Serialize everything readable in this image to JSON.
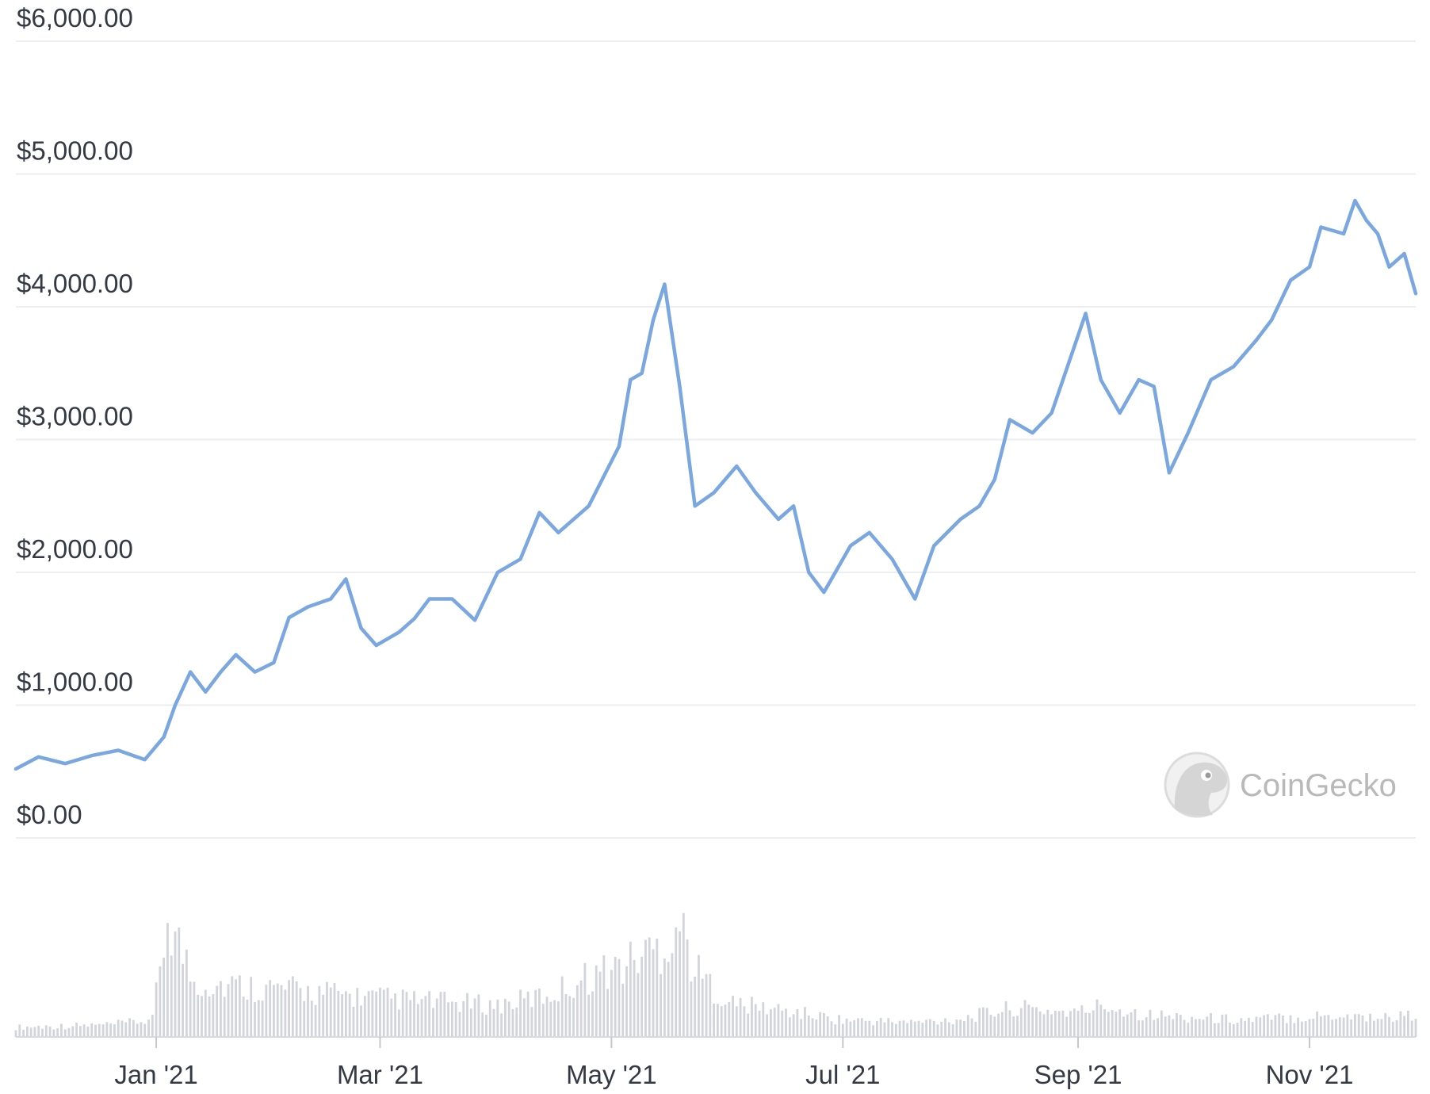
{
  "chart_data": {
    "type": "line",
    "y_ticks": [
      "$0.00",
      "$1,000.00",
      "$2,000.00",
      "$3,000.00",
      "$4,000.00",
      "$5,000.00",
      "$6,000.00"
    ],
    "ylim": [
      0,
      6000
    ],
    "x_ticks": [
      "Jan '21",
      "Mar '21",
      "May '21",
      "Jul '21",
      "Sep '21",
      "Nov '21"
    ],
    "x_tick_dates": [
      "2021-01-01",
      "2021-03-01",
      "2021-05-01",
      "2021-07-01",
      "2021-09-01",
      "2021-11-01"
    ],
    "x_range": [
      "2020-11-25",
      "2021-11-29"
    ],
    "grid": true,
    "line_color": "#7aa7e0",
    "price_series": {
      "x": [
        "2020-11-25",
        "2020-12-01",
        "2020-12-08",
        "2020-12-15",
        "2020-12-22",
        "2020-12-29",
        "2021-01-03",
        "2021-01-06",
        "2021-01-10",
        "2021-01-14",
        "2021-01-18",
        "2021-01-22",
        "2021-01-27",
        "2021-02-01",
        "2021-02-05",
        "2021-02-10",
        "2021-02-16",
        "2021-02-20",
        "2021-02-24",
        "2021-02-28",
        "2021-03-06",
        "2021-03-10",
        "2021-03-14",
        "2021-03-20",
        "2021-03-26",
        "2021-04-01",
        "2021-04-07",
        "2021-04-12",
        "2021-04-17",
        "2021-04-25",
        "2021-05-03",
        "2021-05-06",
        "2021-05-09",
        "2021-05-12",
        "2021-05-15",
        "2021-05-19",
        "2021-05-23",
        "2021-05-28",
        "2021-06-03",
        "2021-06-08",
        "2021-06-14",
        "2021-06-18",
        "2021-06-22",
        "2021-06-26",
        "2021-07-03",
        "2021-07-08",
        "2021-07-14",
        "2021-07-20",
        "2021-07-25",
        "2021-08-01",
        "2021-08-06",
        "2021-08-10",
        "2021-08-14",
        "2021-08-20",
        "2021-08-25",
        "2021-09-03",
        "2021-09-07",
        "2021-09-12",
        "2021-09-17",
        "2021-09-21",
        "2021-09-25",
        "2021-09-30",
        "2021-10-06",
        "2021-10-12",
        "2021-10-18",
        "2021-10-22",
        "2021-10-27",
        "2021-11-01",
        "2021-11-04",
        "2021-11-10",
        "2021-11-13",
        "2021-11-16",
        "2021-11-19",
        "2021-11-22",
        "2021-11-26",
        "2021-11-29"
      ],
      "y": [
        520,
        610,
        560,
        620,
        660,
        590,
        760,
        1000,
        1250,
        1100,
        1250,
        1380,
        1250,
        1320,
        1660,
        1740,
        1800,
        1950,
        1580,
        1450,
        1550,
        1650,
        1800,
        1800,
        1640,
        2000,
        2100,
        2450,
        2300,
        2500,
        2950,
        3450,
        3500,
        3900,
        4170,
        3400,
        2500,
        2600,
        2800,
        2600,
        2400,
        2500,
        2000,
        1850,
        2200,
        2300,
        2100,
        1800,
        2200,
        2400,
        2500,
        2700,
        3150,
        3050,
        3200,
        3950,
        3450,
        3200,
        3450,
        3400,
        2750,
        3050,
        3450,
        3550,
        3750,
        3900,
        4200,
        4300,
        4600,
        4550,
        4800,
        4650,
        4550,
        4300,
        4400,
        4100
      ]
    },
    "volume_series": {
      "x": [
        "2020-11-25",
        "2020-12-20",
        "2020-12-31",
        "2021-01-04",
        "2021-01-11",
        "2021-02-01",
        "2021-03-01",
        "2021-04-01",
        "2021-04-15",
        "2021-04-25",
        "2021-05-05",
        "2021-05-10",
        "2021-05-15",
        "2021-05-19",
        "2021-05-23",
        "2021-06-01",
        "2021-06-15",
        "2021-07-01",
        "2021-07-20",
        "2021-08-01",
        "2021-08-15",
        "2021-09-01",
        "2021-09-07",
        "2021-09-20",
        "2021-10-01",
        "2021-10-15",
        "2021-11-01",
        "2021-11-10",
        "2021-11-20",
        "2021-11-29"
      ],
      "y": [
        8,
        10,
        14,
        100,
        45,
        40,
        32,
        26,
        35,
        50,
        60,
        70,
        75,
        95,
        55,
        28,
        22,
        14,
        12,
        15,
        24,
        20,
        26,
        18,
        16,
        14,
        17,
        18,
        16,
        18
      ]
    }
  },
  "watermark": {
    "text": "CoinGecko",
    "icon": "gecko-icon"
  }
}
